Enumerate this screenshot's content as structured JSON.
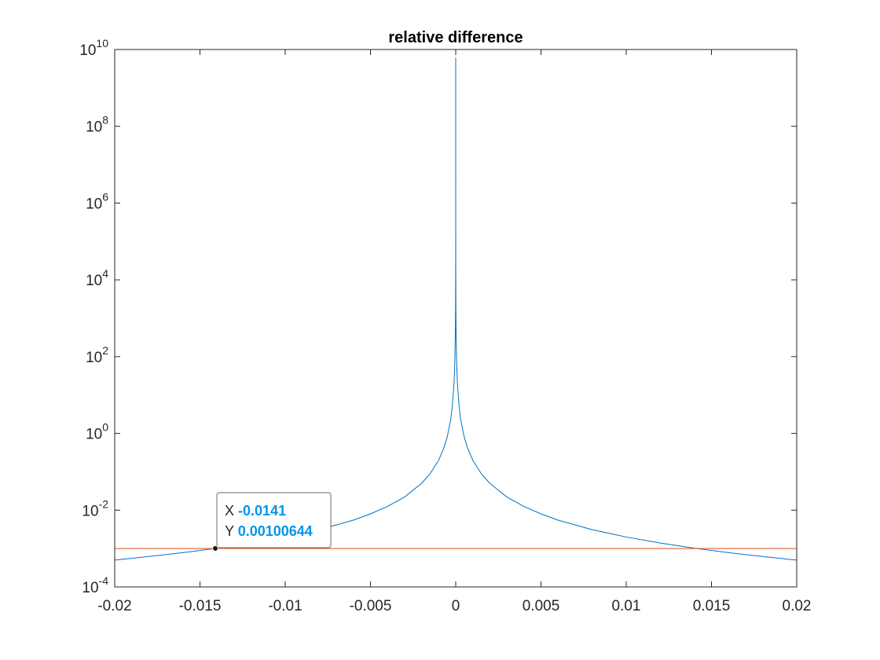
{
  "chart_data": {
    "type": "line",
    "title": "relative difference",
    "xlabel": "",
    "ylabel": "",
    "xlim": [
      -0.02,
      0.02
    ],
    "ylim": [
      0.0001,
      10000000000
    ],
    "yscale": "log",
    "grid": false,
    "box": true,
    "x_ticks": [
      -0.02,
      -0.015,
      -0.01,
      -0.005,
      0,
      0.005,
      0.01,
      0.015,
      0.02
    ],
    "x_tick_labels": [
      "-0.02",
      "-0.015",
      "-0.01",
      "-0.005",
      "0",
      "0.005",
      "0.01",
      "0.015",
      "0.02"
    ],
    "y_ticks": [
      {
        "value": 0.0001,
        "base": "10",
        "exp": "-4"
      },
      {
        "value": 0.01,
        "base": "10",
        "exp": "-2"
      },
      {
        "value": 1,
        "base": "10",
        "exp": "0"
      },
      {
        "value": 100,
        "base": "10",
        "exp": "2"
      },
      {
        "value": 10000,
        "base": "10",
        "exp": "4"
      },
      {
        "value": 1000000,
        "base": "10",
        "exp": "6"
      },
      {
        "value": 100000000,
        "base": "10",
        "exp": "8"
      },
      {
        "value": 10000000000,
        "base": "10",
        "exp": "10"
      }
    ],
    "series": [
      {
        "color": "#0072BD",
        "points": [
          [
            -0.02,
            0.0005
          ],
          [
            -0.018,
            0.00062
          ],
          [
            -0.016,
            0.00078
          ],
          [
            -0.0141,
            0.00100644
          ],
          [
            -0.012,
            0.00139
          ],
          [
            -0.01,
            0.002
          ],
          [
            -0.008,
            0.0031
          ],
          [
            -0.006,
            0.0055
          ],
          [
            -0.005,
            0.008
          ],
          [
            -0.004,
            0.0125
          ],
          [
            -0.003,
            0.022
          ],
          [
            -0.002,
            0.05
          ],
          [
            -0.0015,
            0.089
          ],
          [
            -0.001,
            0.2
          ],
          [
            -0.0007,
            0.41
          ],
          [
            -0.0005,
            0.8
          ],
          [
            -0.0003,
            2.2
          ],
          [
            -0.0002,
            5
          ],
          [
            -0.0001,
            20
          ],
          [
            -5e-05,
            80
          ],
          [
            -2e-05,
            500
          ],
          [
            -1e-05,
            2000
          ],
          [
            -3e-06,
            22000
          ],
          [
            -1e-06,
            200000
          ],
          [
            -1e-07,
            20000000
          ],
          [
            0,
            6000000000
          ],
          [
            1e-07,
            20000000
          ],
          [
            1e-06,
            200000
          ],
          [
            3e-06,
            22000
          ],
          [
            1e-05,
            2000
          ],
          [
            2e-05,
            500
          ],
          [
            5e-05,
            80
          ],
          [
            0.0001,
            20
          ],
          [
            0.0002,
            5
          ],
          [
            0.0003,
            2.2
          ],
          [
            0.0005,
            0.8
          ],
          [
            0.0007,
            0.41
          ],
          [
            0.001,
            0.2
          ],
          [
            0.0015,
            0.089
          ],
          [
            0.002,
            0.05
          ],
          [
            0.003,
            0.022
          ],
          [
            0.004,
            0.0125
          ],
          [
            0.005,
            0.008
          ],
          [
            0.006,
            0.0055
          ],
          [
            0.008,
            0.0031
          ],
          [
            0.01,
            0.002
          ],
          [
            0.012,
            0.00139
          ],
          [
            0.0141,
            0.00100644
          ],
          [
            0.016,
            0.00078
          ],
          [
            0.018,
            0.00062
          ],
          [
            0.02,
            0.0005
          ]
        ]
      },
      {
        "color": "#D95319",
        "points": [
          [
            -0.02,
            0.001
          ],
          [
            0.02,
            0.001
          ]
        ]
      }
    ],
    "datatip": {
      "x": -0.0141,
      "y": 0.00100644,
      "x_key": "X",
      "y_key": "Y",
      "x_text": "-0.0141",
      "y_text": "0.00100644",
      "value_color": "#0095E8"
    }
  }
}
